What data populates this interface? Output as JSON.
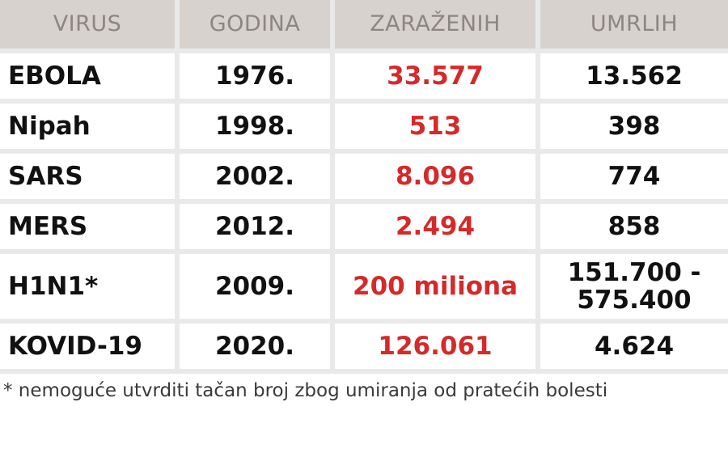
{
  "table": {
    "headers": [
      "VIRUS",
      "GODINA",
      "ZARAŽENIH",
      "UMRLIH"
    ],
    "rows": [
      {
        "virus": "EBOLA",
        "year": "1976.",
        "infected": "33.577",
        "deaths": "13.562"
      },
      {
        "virus": "Nipah",
        "year": "1998.",
        "infected": "513",
        "deaths": "398"
      },
      {
        "virus": "SARS",
        "year": "2002.",
        "infected": "8.096",
        "deaths": "774"
      },
      {
        "virus": "MERS",
        "year": "2012.",
        "infected": "2.494",
        "deaths": "858"
      },
      {
        "virus": "H1N1*",
        "year": "2009.",
        "infected": "200 miliona",
        "deaths": "151.700 -\n575.400"
      },
      {
        "virus": "KOVID-19",
        "year": "2020.",
        "infected": "126.061",
        "deaths": "4.624"
      }
    ]
  },
  "footnote": "* nemoguće utvrditi tačan broj zbog umiranja od pratećih bolesti",
  "colors": {
    "header_bg": "#d8d2cf",
    "header_text": "#8b8583",
    "infected_text": "#d42a2a",
    "body_text": "#111111"
  }
}
